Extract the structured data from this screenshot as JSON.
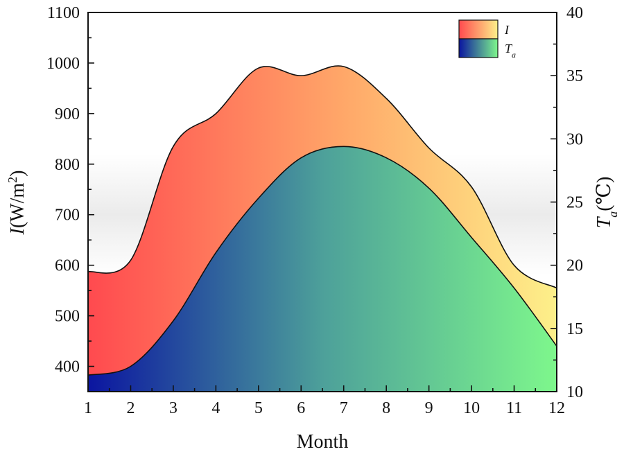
{
  "chart_data": {
    "type": "area",
    "xlabel": "Month",
    "ylabel_left": {
      "symbol": "I",
      "unit": "(W/m",
      "sup": "2",
      "close": ")"
    },
    "ylabel_right": {
      "symbol": "T",
      "sub": "a",
      "unit": "(℃)"
    },
    "x": [
      1,
      2,
      3,
      4,
      5,
      6,
      7,
      8,
      9,
      10,
      11,
      12
    ],
    "xlim": [
      1,
      12
    ],
    "ylim_left": [
      350,
      1100
    ],
    "ylim_right": [
      10,
      40
    ],
    "x_ticks": [
      "1",
      "2",
      "3",
      "4",
      "5",
      "6",
      "7",
      "8",
      "9",
      "10",
      "11",
      "12"
    ],
    "y_left_ticks": [
      400,
      500,
      600,
      700,
      800,
      900,
      1000,
      1100
    ],
    "y_right_ticks": [
      10,
      15,
      20,
      25,
      30,
      35,
      40
    ],
    "series": [
      {
        "name": "I",
        "axis": "left",
        "values": [
          587,
          610,
          835,
          900,
          990,
          975,
          993,
          930,
          832,
          755,
          600,
          555
        ],
        "gradient": [
          "#ff4a4f",
          "#ffa869",
          "#fdf08a"
        ]
      },
      {
        "name": "T",
        "sub": "a",
        "axis": "right",
        "values": [
          11.3,
          12.0,
          15.6,
          21.0,
          25.3,
          28.5,
          29.4,
          28.5,
          26.1,
          22.2,
          18.2,
          13.6
        ],
        "gradient": [
          "#0b15a0",
          "#4da09a",
          "#7ef78c"
        ]
      }
    ],
    "background_band": {
      "from": 580,
      "to": 820,
      "color": "#e8e8e8"
    },
    "legend": {
      "position": "top-right",
      "entries": [
        {
          "label": "I"
        },
        {
          "label": "T",
          "sub": "a"
        }
      ]
    }
  }
}
